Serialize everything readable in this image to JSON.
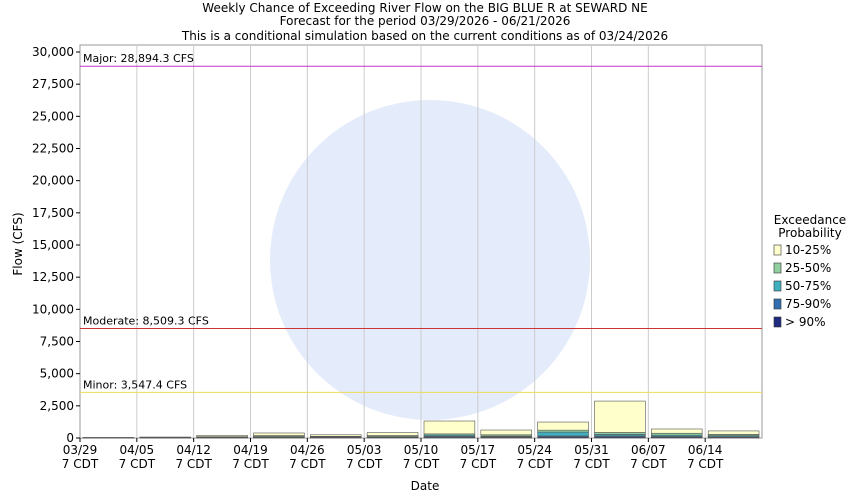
{
  "chart_data": {
    "type": "stacked_bar",
    "title": "Weekly Chance of Exceeding River Flow on the BIG BLUE R at SEWARD NE",
    "subtitle": "Forecast for the period 03/29/2026 - 06/21/2026",
    "note": "This is a conditional simulation based on the current conditions as of 03/24/2026",
    "x_label": "Date",
    "y_label": "Flow (CFS)",
    "legend_title": "Exceedance Probability",
    "categories": [
      "03/29 7 CDT",
      "04/05 7 CDT",
      "04/12 7 CDT",
      "04/19 7 CDT",
      "04/26 7 CDT",
      "05/03 7 CDT",
      "05/10 7 CDT",
      "05/17 7 CDT",
      "05/24 7 CDT",
      "05/31 7 CDT",
      "06/07 7 CDT",
      "06/14 7 CDT"
    ],
    "series": [
      {
        "name": "> 90%",
        "color": "#1f2a80",
        "values": [
          5,
          10,
          20,
          40,
          30,
          40,
          60,
          50,
          80,
          80,
          60,
          50
        ]
      },
      {
        "name": "75-90%",
        "color": "#2f6fb0",
        "values": [
          5,
          10,
          20,
          30,
          20,
          30,
          60,
          40,
          80,
          80,
          60,
          50
        ]
      },
      {
        "name": "50-75%",
        "color": "#3fb0c0",
        "values": [
          5,
          10,
          20,
          40,
          30,
          40,
          100,
          60,
          300,
          120,
          100,
          80
        ]
      },
      {
        "name": "25-50%",
        "color": "#90d0a0",
        "values": [
          10,
          15,
          40,
          80,
          50,
          80,
          100,
          100,
          150,
          150,
          150,
          100
        ]
      },
      {
        "name": "10-25%",
        "color": "#ffffcc",
        "values": [
          20,
          30,
          100,
          200,
          120,
          230,
          1000,
          370,
          630,
          2440,
          330,
          270
        ]
      }
    ],
    "thresholds": [
      {
        "label": "Major: 28,894.3 CFS",
        "value": 28894.3,
        "color": "#cc33cc"
      },
      {
        "label": "Moderate: 8,509.3 CFS",
        "value": 8509.3,
        "color": "#cc3333"
      },
      {
        "label": "Minor: 3,547.4 CFS",
        "value": 3547.4,
        "color": "#eedd55"
      }
    ],
    "ylim": [
      0,
      30000
    ],
    "yticks": [
      0,
      {
        "value": 2500,
        "label": "2,500"
      },
      {
        "value": 5000,
        "label": "5,000"
      },
      {
        "value": 7500,
        "label": "7,500"
      },
      {
        "value": 10000,
        "label": "10,000"
      },
      {
        "value": 12500,
        "label": "12,500"
      },
      {
        "value": 15000,
        "label": "15,000"
      },
      {
        "value": 17500,
        "label": "17,500"
      },
      {
        "value": 20000,
        "label": "20,000"
      },
      {
        "value": 22500,
        "label": "22,500"
      },
      {
        "value": 25000,
        "label": "25,000"
      },
      {
        "value": 27500,
        "label": "27,500"
      },
      {
        "value": 30000,
        "label": "30,000"
      }
    ],
    "grid": "vertical"
  }
}
